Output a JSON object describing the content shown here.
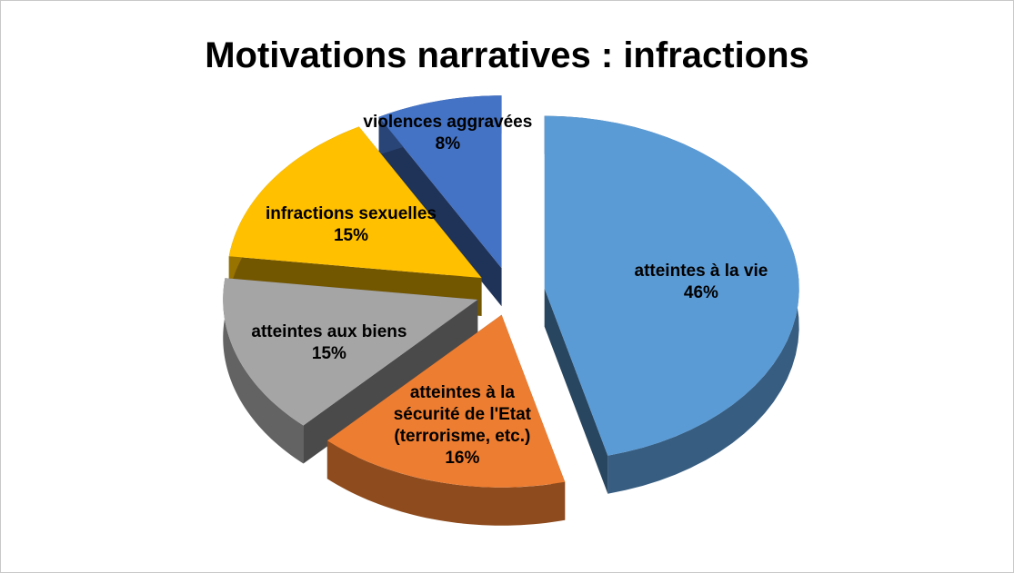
{
  "chart_data": {
    "type": "pie",
    "title": "Motivations narratives : infractions",
    "categories": [
      "atteintes à la vie",
      "atteintes à la sécurité de l'Etat (terrorisme, etc.)",
      "atteintes aux biens",
      "infractions sexuelles",
      "violences aggravées"
    ],
    "values": [
      46,
      16,
      15,
      15,
      8
    ],
    "value_labels": [
      "46%",
      "16%",
      "15%",
      "15%",
      "8%"
    ],
    "colors": [
      "#5b9bd5",
      "#ed7d31",
      "#a5a5a5",
      "#ffc000",
      "#4472c4"
    ]
  }
}
